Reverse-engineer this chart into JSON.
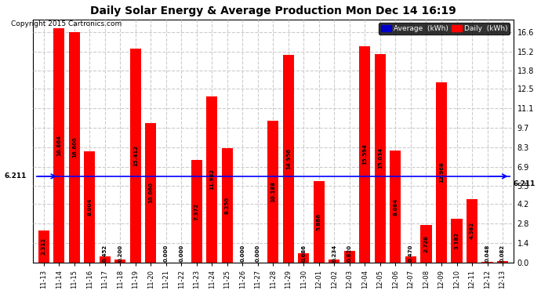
{
  "title": "Daily Solar Energy & Average Production Mon Dec 14 16:19",
  "copyright": "Copyright 2015 Cartronics.com",
  "categories": [
    "11-13",
    "11-14",
    "11-15",
    "11-16",
    "11-17",
    "11-18",
    "11-19",
    "11-20",
    "11-21",
    "11-22",
    "11-23",
    "11-24",
    "11-25",
    "11-26",
    "11-27",
    "11-28",
    "11-29",
    "11-30",
    "12-01",
    "12-02",
    "12-03",
    "12-04",
    "12-05",
    "12-06",
    "12-07",
    "12-08",
    "12-09",
    "12-10",
    "12-11",
    "12-12",
    "12-13"
  ],
  "values": [
    2.312,
    16.864,
    16.6,
    8.004,
    0.452,
    0.2,
    15.412,
    10.06,
    0.0,
    0.0,
    7.372,
    11.982,
    8.25,
    0.0,
    0.0,
    10.188,
    14.956,
    0.686,
    5.886,
    0.234,
    0.82,
    15.594,
    15.034,
    8.064,
    0.47,
    2.728,
    12.968,
    3.182,
    4.582,
    0.048,
    0.082
  ],
  "average": 6.211,
  "bar_color": "#ff0000",
  "avg_line_color": "#0000ff",
  "background_color": "#ffffff",
  "grid_color": "#cccccc",
  "yticks": [
    0.0,
    1.4,
    2.8,
    4.2,
    5.5,
    6.9,
    8.3,
    9.7,
    11.1,
    12.5,
    13.8,
    15.2,
    16.6
  ],
  "ylim": [
    0.0,
    17.5
  ],
  "legend_avg_color": "#0000cd",
  "legend_daily_color": "#ff0000",
  "legend_avg_text": "Average  (kWh)",
  "legend_daily_text": "Daily  (kWh)"
}
